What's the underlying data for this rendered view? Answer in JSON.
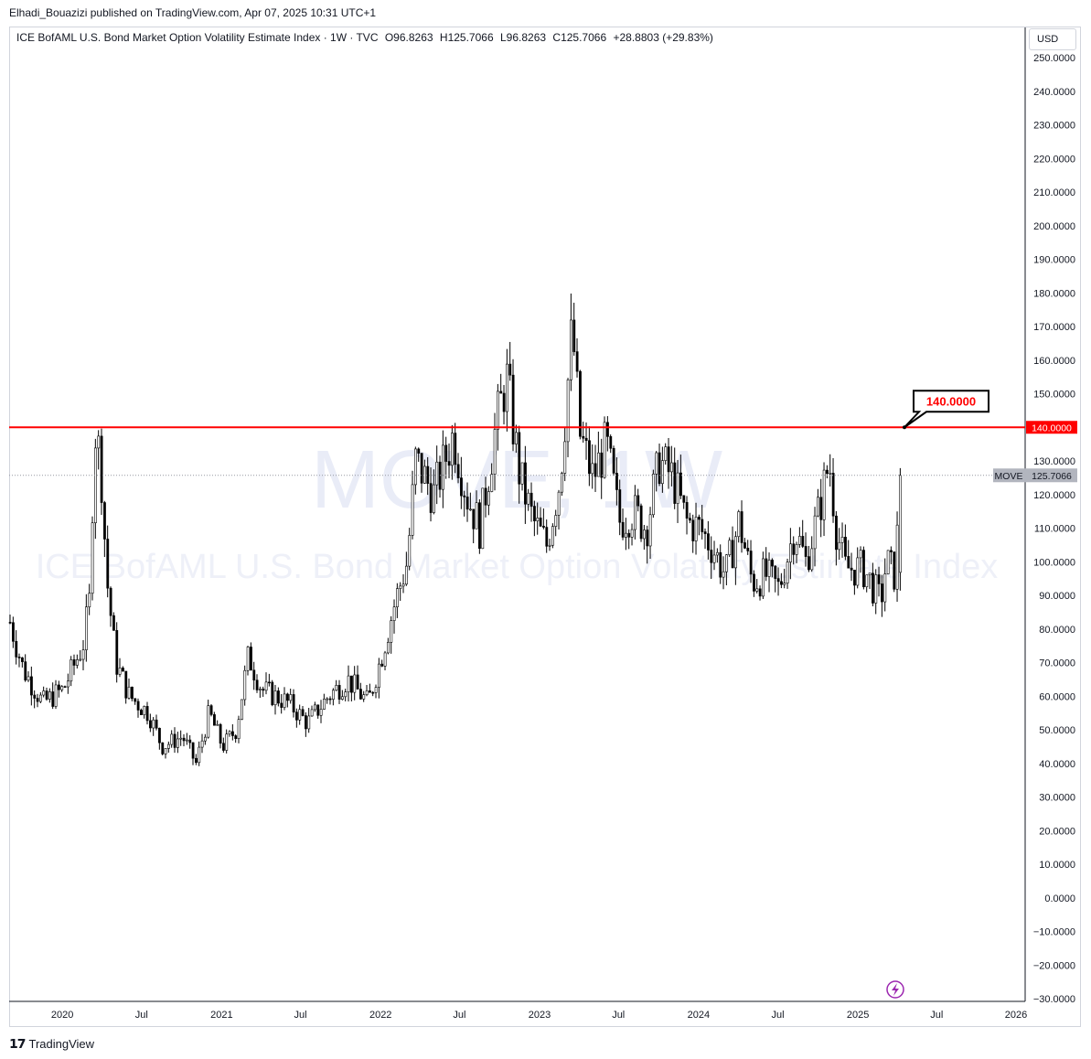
{
  "publisher": "Elhadi_Bouazizi published on TradingView.com, Apr 07, 2025 10:31 UTC+1",
  "legend": {
    "title": "ICE BofAML U.S. Bond Market Option Volatility Estimate Index · 1W · TVC",
    "open_label": "O",
    "open": "96.8263",
    "high_label": "H",
    "high": "125.7066",
    "low_label": "L",
    "low": "96.8263",
    "close_label": "C",
    "close": "125.7066",
    "change": "+28.8803 (+29.83%)"
  },
  "currency_button": "USD",
  "watermark": {
    "symbol": "MOVE, 1W",
    "name": "ICE BofAML U.S. Bond Market Option Volatility Estimate Index"
  },
  "price_label": {
    "symbol": "MOVE",
    "value": "125.7066"
  },
  "level_label": {
    "value": "140.0000",
    "color": "#f00"
  },
  "callout": {
    "text": "140.0000"
  },
  "footer": {
    "brand": "TradingView"
  },
  "colors": {
    "candle": "#000000",
    "level_line": "#ff0000",
    "grid_border": "#d1d4dc",
    "price_label_bg": "#b2b5be",
    "lightning": "#9c27b0"
  },
  "chart_data": {
    "type": "candlestick",
    "title": "ICE BofAML U.S. Bond Market Option Volatility Estimate Index",
    "symbol": "MOVE",
    "interval": "1W",
    "ylim": [
      -30,
      255
    ],
    "y_ticks": [
      "250.0000",
      "240.0000",
      "230.0000",
      "220.0000",
      "210.0000",
      "200.0000",
      "190.0000",
      "180.0000",
      "170.0000",
      "160.0000",
      "150.0000",
      "140.0000",
      "130.0000",
      "120.0000",
      "110.0000",
      "100.0000",
      "90.0000",
      "80.0000",
      "70.0000",
      "60.0000",
      "50.0000",
      "40.0000",
      "30.0000",
      "20.0000",
      "10.0000",
      "0.0000",
      "−10.0000",
      "−20.0000",
      "−30.0000"
    ],
    "x_ticks": [
      {
        "label": "2020",
        "date": "2020-01-01"
      },
      {
        "label": "Jul",
        "date": "2020-07-01"
      },
      {
        "label": "2021",
        "date": "2021-01-01"
      },
      {
        "label": "Jul",
        "date": "2021-07-01"
      },
      {
        "label": "2022",
        "date": "2022-01-01"
      },
      {
        "label": "Jul",
        "date": "2022-07-01"
      },
      {
        "label": "2023",
        "date": "2023-01-01"
      },
      {
        "label": "Jul",
        "date": "2023-07-01"
      },
      {
        "label": "2024",
        "date": "2024-01-01"
      },
      {
        "label": "Jul",
        "date": "2024-07-01"
      },
      {
        "label": "2025",
        "date": "2025-01-01"
      },
      {
        "label": "Jul",
        "date": "2025-07-01"
      },
      {
        "label": "2026",
        "date": "2026-01-01"
      }
    ],
    "x_range": [
      "2019-09-01",
      "2026-01-20"
    ],
    "horizontal_level": 140,
    "last_close": 125.7066,
    "anchors": [
      [
        "2019-09-01",
        82
      ],
      [
        "2019-10-01",
        68
      ],
      [
        "2019-11-15",
        58
      ],
      [
        "2020-01-01",
        62
      ],
      [
        "2020-02-15",
        75
      ],
      [
        "2020-03-01",
        88
      ],
      [
        "2020-03-13",
        140
      ],
      [
        "2020-03-27",
        130
      ],
      [
        "2020-04-10",
        95
      ],
      [
        "2020-05-01",
        70
      ],
      [
        "2020-06-01",
        60
      ],
      [
        "2020-07-15",
        55
      ],
      [
        "2020-08-15",
        45
      ],
      [
        "2020-10-01",
        48
      ],
      [
        "2020-11-01",
        40
      ],
      [
        "2020-12-01",
        55
      ],
      [
        "2021-01-01",
        45
      ],
      [
        "2021-02-01",
        50
      ],
      [
        "2021-03-01",
        72
      ],
      [
        "2021-04-01",
        62
      ],
      [
        "2021-06-01",
        58
      ],
      [
        "2021-07-15",
        52
      ],
      [
        "2021-09-01",
        60
      ],
      [
        "2021-10-15",
        65
      ],
      [
        "2021-12-01",
        58
      ],
      [
        "2022-01-01",
        72
      ],
      [
        "2022-02-01",
        88
      ],
      [
        "2022-03-01",
        100
      ],
      [
        "2022-03-20",
        130
      ],
      [
        "2022-05-01",
        120
      ],
      [
        "2022-06-15",
        138
      ],
      [
        "2022-07-15",
        120
      ],
      [
        "2022-08-15",
        110
      ],
      [
        "2022-09-20",
        140
      ],
      [
        "2022-10-15",
        155
      ],
      [
        "2022-11-15",
        125
      ],
      [
        "2022-12-15",
        112
      ],
      [
        "2023-01-15",
        105
      ],
      [
        "2023-02-15",
        125
      ],
      [
        "2023-03-15",
        170
      ],
      [
        "2023-04-01",
        138
      ],
      [
        "2023-05-01",
        125
      ],
      [
        "2023-06-01",
        135
      ],
      [
        "2023-07-01",
        112
      ],
      [
        "2023-08-01",
        115
      ],
      [
        "2023-09-01",
        110
      ],
      [
        "2023-10-01",
        130
      ],
      [
        "2023-11-01",
        125
      ],
      [
        "2023-12-01",
        112
      ],
      [
        "2024-01-01",
        110
      ],
      [
        "2024-02-01",
        104
      ],
      [
        "2024-03-01",
        96
      ],
      [
        "2024-04-01",
        112
      ],
      [
        "2024-05-01",
        94
      ],
      [
        "2024-06-01",
        96
      ],
      [
        "2024-07-01",
        92
      ],
      [
        "2024-08-07",
        110
      ],
      [
        "2024-09-01",
        100
      ],
      [
        "2024-10-01",
        115
      ],
      [
        "2024-10-25",
        130
      ],
      [
        "2024-11-10",
        110
      ],
      [
        "2024-12-01",
        98
      ],
      [
        "2025-01-10",
        98
      ],
      [
        "2025-02-01",
        93
      ],
      [
        "2025-02-20",
        88
      ],
      [
        "2025-03-05",
        100
      ],
      [
        "2025-03-25",
        96
      ],
      [
        "2025-04-07",
        125.7
      ]
    ]
  }
}
